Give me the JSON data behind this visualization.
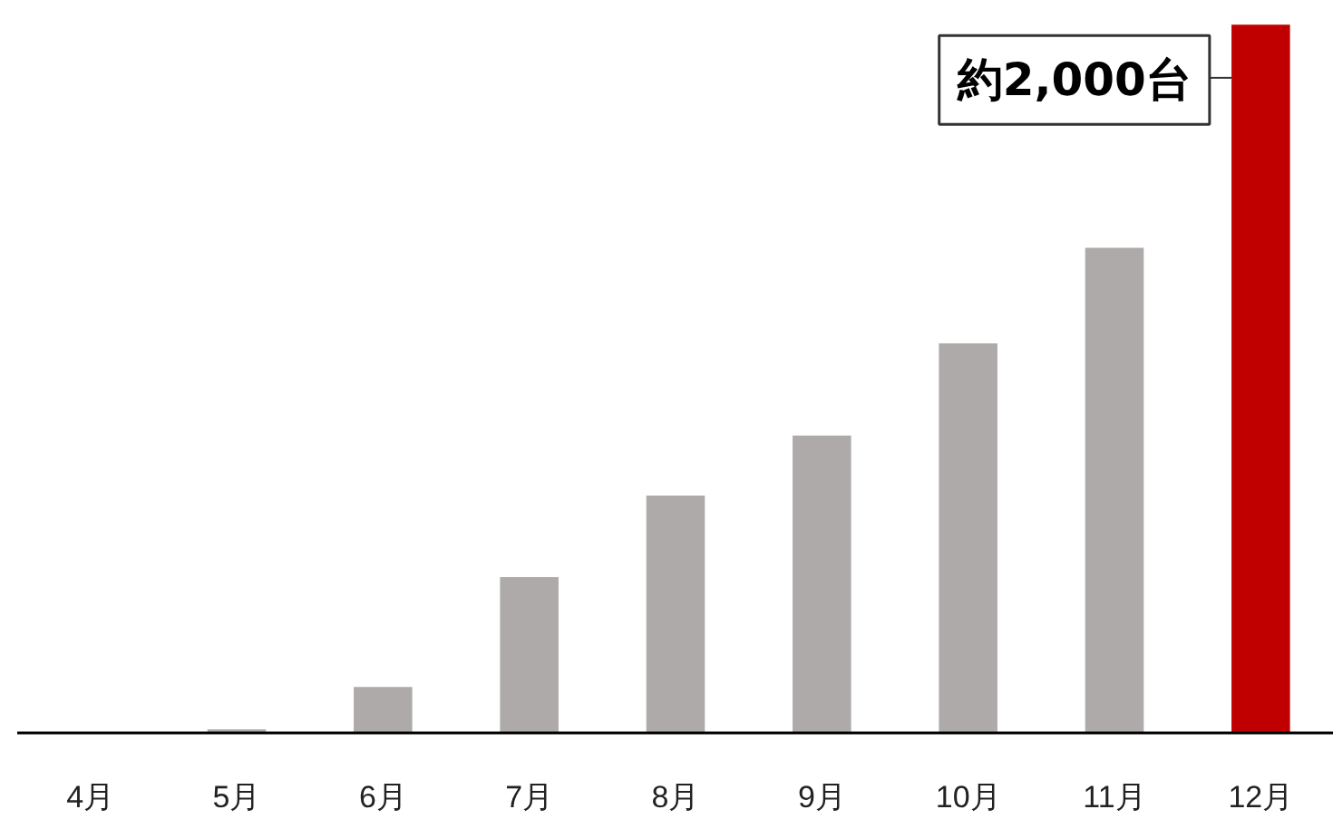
{
  "chart_data": {
    "type": "bar",
    "categories": [
      "4月",
      "5月",
      "6月",
      "7月",
      "8月",
      "9月",
      "10月",
      "11月",
      "12月"
    ],
    "values": [
      0,
      10,
      130,
      440,
      670,
      840,
      1100,
      1370,
      2000
    ],
    "colors": [
      "#aeaaaa",
      "#aeaaaa",
      "#aeaaaa",
      "#aeaaaa",
      "#aeaaaa",
      "#aeaaaa",
      "#aeaaaa",
      "#aeaaaa",
      "#c00000"
    ],
    "value_labels": [
      null,
      null,
      null,
      null,
      null,
      null,
      null,
      null,
      "約2,000台"
    ]
  }
}
